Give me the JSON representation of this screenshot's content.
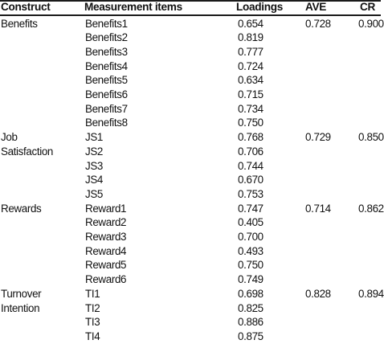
{
  "headers": {
    "construct": "Construct",
    "items": "Measurement items",
    "loadings": "Loadings",
    "ave": "AVE",
    "cr": "CR"
  },
  "groups": [
    {
      "construct_lines": [
        "Benefits"
      ],
      "ave": "0.728",
      "cr": "0.900",
      "rows": [
        {
          "item": "Benefits1",
          "loading": "0.654"
        },
        {
          "item": "Benefits2",
          "loading": "0.819"
        },
        {
          "item": "Benefits3",
          "loading": "0.777"
        },
        {
          "item": "Benefits4",
          "loading": "0.724"
        },
        {
          "item": "Benefits5",
          "loading": "0.634"
        },
        {
          "item": "Benefits6",
          "loading": "0.715"
        },
        {
          "item": "Benefits7",
          "loading": "0.734"
        },
        {
          "item": "Benefits8",
          "loading": "0.750"
        }
      ]
    },
    {
      "construct_lines": [
        "Job",
        "Satisfaction"
      ],
      "ave": "0.729",
      "cr": "0.850",
      "rows": [
        {
          "item": "JS1",
          "loading": "0.768"
        },
        {
          "item": "JS2",
          "loading": "0.706"
        },
        {
          "item": "JS3",
          "loading": "0.744"
        },
        {
          "item": "JS4",
          "loading": "0.670"
        },
        {
          "item": "JS5",
          "loading": "0.753"
        }
      ]
    },
    {
      "construct_lines": [
        "Rewards"
      ],
      "ave": "0.714",
      "cr": "0.862",
      "rows": [
        {
          "item": "Reward1",
          "loading": "0.747"
        },
        {
          "item": "Reward2",
          "loading": "0.405"
        },
        {
          "item": "Reward3",
          "loading": "0.700"
        },
        {
          "item": "Reward4",
          "loading": "0.493"
        },
        {
          "item": "Reward5",
          "loading": "0.750"
        },
        {
          "item": "Reward6",
          "loading": "0.749"
        }
      ]
    },
    {
      "construct_lines": [
        "Turnover",
        "Intention"
      ],
      "ave": "0.828",
      "cr": "0.894",
      "rows": [
        {
          "item": "TI1",
          "loading": "0.698"
        },
        {
          "item": "TI2",
          "loading": "0.825"
        },
        {
          "item": "TI3",
          "loading": "0.886"
        },
        {
          "item": "TI4",
          "loading": "0.875"
        }
      ]
    }
  ]
}
